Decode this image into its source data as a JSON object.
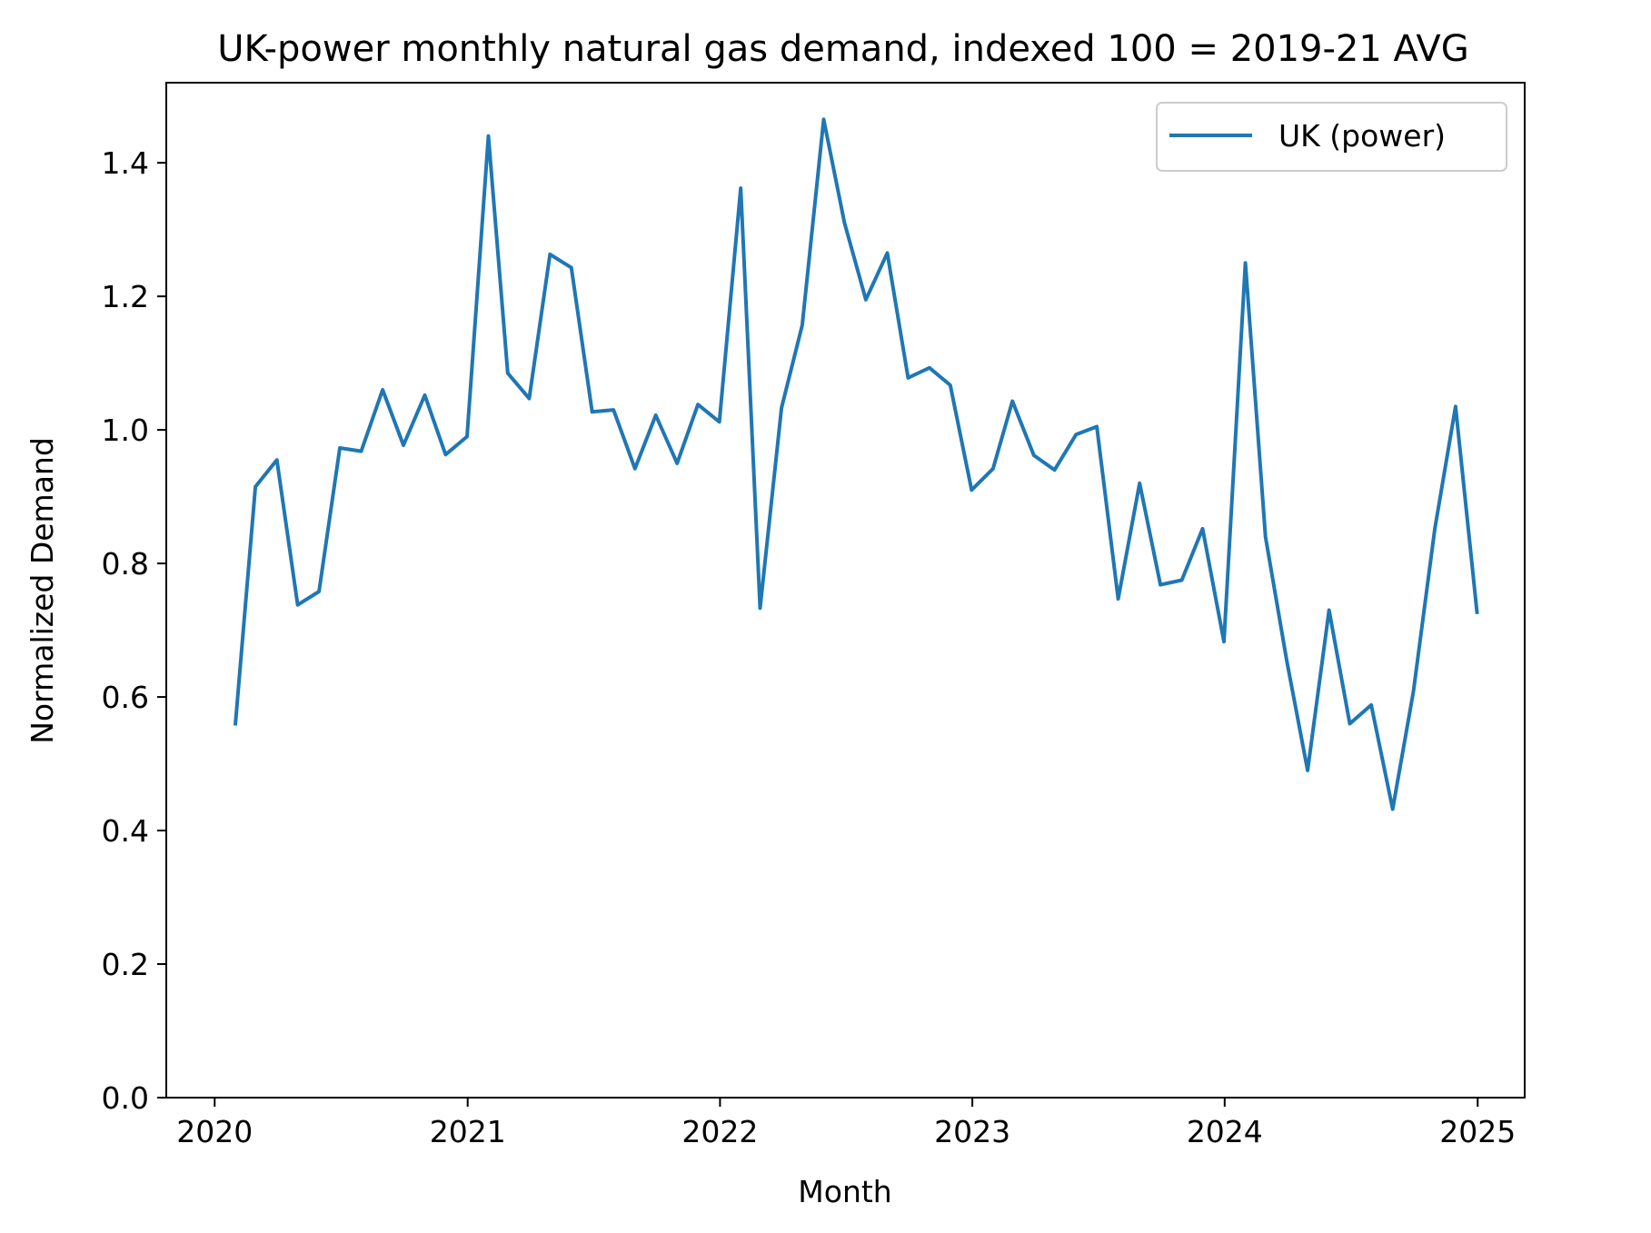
{
  "chart_data": {
    "type": "line",
    "title": "UK-power monthly natural gas demand, indexed 100 = 2019-21 AVG",
    "xlabel": "Month",
    "ylabel": "Normalized Demand",
    "x_ticks": [
      "2020",
      "2021",
      "2022",
      "2023",
      "2024",
      "2025"
    ],
    "y_ticks": [
      "0.0",
      "0.2",
      "0.4",
      "0.6",
      "0.8",
      "1.0",
      "1.2",
      "1.4"
    ],
    "xlim": [
      "2019-10-23",
      "2025-03-10"
    ],
    "ylim": [
      0,
      1.52
    ],
    "grid": false,
    "legend_position": "upper right",
    "x": [
      "2020-01",
      "2020-02",
      "2020-03",
      "2020-04",
      "2020-05",
      "2020-06",
      "2020-07",
      "2020-08",
      "2020-09",
      "2020-10",
      "2020-11",
      "2020-12",
      "2021-01",
      "2021-02",
      "2021-03",
      "2021-04",
      "2021-05",
      "2021-06",
      "2021-07",
      "2021-08",
      "2021-09",
      "2021-10",
      "2021-11",
      "2021-12",
      "2022-01",
      "2022-02",
      "2022-03",
      "2022-04",
      "2022-05",
      "2022-06",
      "2022-07",
      "2022-08",
      "2022-09",
      "2022-10",
      "2022-11",
      "2022-12",
      "2023-01",
      "2023-02",
      "2023-03",
      "2023-04",
      "2023-05",
      "2023-06",
      "2023-07",
      "2023-08",
      "2023-09",
      "2023-10",
      "2023-11",
      "2023-12",
      "2024-01",
      "2024-02",
      "2024-03",
      "2024-04",
      "2024-05",
      "2024-06",
      "2024-07",
      "2024-08",
      "2024-09",
      "2024-10",
      "2024-11",
      "2024-12"
    ],
    "series": [
      {
        "name": "UK (power)",
        "color": "#1f77b4",
        "values": [
          0.56,
          0.915,
          0.955,
          0.738,
          0.758,
          0.973,
          0.968,
          1.06,
          0.977,
          1.052,
          0.963,
          0.99,
          1.44,
          1.085,
          1.047,
          1.263,
          1.243,
          1.027,
          1.03,
          0.942,
          1.022,
          0.95,
          1.038,
          1.012,
          1.362,
          0.733,
          1.033,
          1.157,
          1.465,
          1.31,
          1.195,
          1.265,
          1.078,
          1.093,
          1.067,
          0.91,
          0.942,
          1.043,
          0.962,
          0.94,
          0.993,
          1.005,
          0.747,
          0.92,
          0.768,
          0.775,
          0.852,
          0.683,
          1.25,
          0.84,
          0.653,
          0.49,
          0.73,
          0.56,
          0.588,
          0.432,
          0.608,
          0.852,
          1.035,
          0.727
        ]
      }
    ]
  }
}
